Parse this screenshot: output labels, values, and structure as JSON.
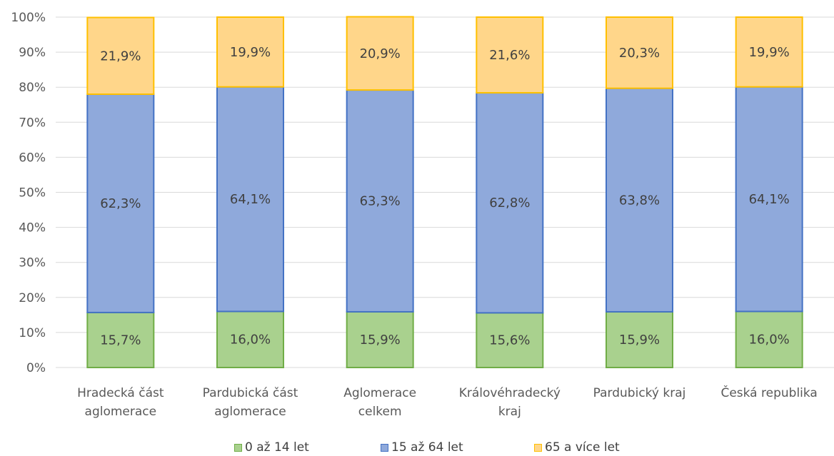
{
  "chart_data": {
    "type": "bar",
    "stacked": true,
    "percent": true,
    "categories": [
      "Hradecká část aglomerace",
      "Pardubická část aglomerace",
      "Aglomerace celkem",
      "Královéhradecký kraj",
      "Pardubický kraj",
      "Česká republika"
    ],
    "series": [
      {
        "name": "0 až 14 let",
        "values": [
          15.7,
          16.0,
          15.9,
          15.6,
          15.9,
          16.0
        ],
        "labels": [
          "15,7%",
          "16,0%",
          "15,9%",
          "15,6%",
          "15,9%",
          "16,0%"
        ],
        "color": "#A9D18E",
        "border": "#70AD47"
      },
      {
        "name": "15 až 64 let",
        "values": [
          62.3,
          64.1,
          63.3,
          62.8,
          63.8,
          64.1
        ],
        "labels": [
          "62,3%",
          "64,1%",
          "63,3%",
          "62,8%",
          "63,8%",
          "64,1%"
        ],
        "color": "#8FA9DB",
        "border": "#4472C4"
      },
      {
        "name": "65 a více let",
        "values": [
          21.9,
          19.9,
          20.9,
          21.6,
          20.3,
          19.9
        ],
        "labels": [
          "21,9%",
          "19,9%",
          "20,9%",
          "21,6%",
          "20,3%",
          "19,9%"
        ],
        "color": "#FFD68A",
        "border": "#FFC000"
      }
    ],
    "yticks": [
      "0%",
      "10%",
      "20%",
      "30%",
      "40%",
      "50%",
      "60%",
      "70%",
      "80%",
      "90%",
      "100%"
    ],
    "ylim": [
      0,
      100
    ],
    "grid": true,
    "legend": "bottom"
  }
}
